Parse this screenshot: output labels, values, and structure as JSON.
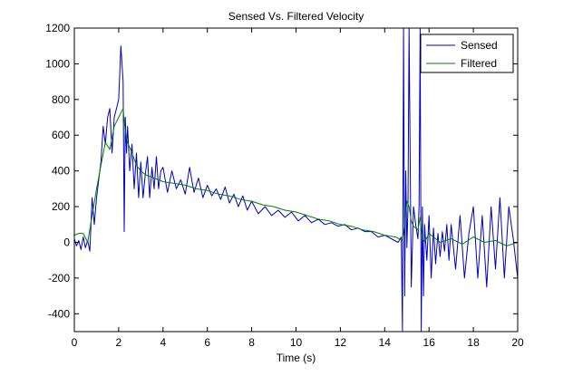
{
  "chart_data": {
    "type": "line",
    "title": "Sensed Vs. Filtered Velocity",
    "xlabel": "Time (s)",
    "ylabel": "",
    "xlim": [
      0,
      20
    ],
    "ylim": [
      -500,
      1200
    ],
    "xticks": [
      0,
      2,
      4,
      6,
      8,
      10,
      12,
      14,
      16,
      18,
      20
    ],
    "yticks": [
      -400,
      -200,
      0,
      200,
      400,
      600,
      800,
      1000,
      1200
    ],
    "xtick_labels": [
      "0",
      "2",
      "4",
      "6",
      "8",
      "10",
      "12",
      "14",
      "16",
      "18",
      "20"
    ],
    "ytick_labels": [
      "-400",
      "-200",
      "0",
      "200",
      "400",
      "600",
      "800",
      "1000",
      "1200"
    ],
    "grid": false,
    "legend_position": "top-right",
    "series": [
      {
        "name": "Sensed",
        "color": "#0000bf",
        "x": [
          0,
          0.1,
          0.2,
          0.3,
          0.4,
          0.5,
          0.6,
          0.7,
          0.8,
          0.9,
          1.0,
          1.1,
          1.2,
          1.3,
          1.4,
          1.5,
          1.6,
          1.7,
          1.8,
          1.9,
          2.0,
          2.1,
          2.2,
          2.25,
          2.3,
          2.35,
          2.4,
          2.5,
          2.6,
          2.7,
          2.8,
          2.9,
          3.0,
          3.1,
          3.2,
          3.3,
          3.4,
          3.5,
          3.6,
          3.7,
          3.8,
          3.9,
          4.0,
          4.2,
          4.4,
          4.6,
          4.8,
          5.0,
          5.2,
          5.4,
          5.6,
          5.8,
          6.0,
          6.2,
          6.4,
          6.6,
          6.8,
          7.0,
          7.2,
          7.4,
          7.6,
          7.8,
          8.0,
          8.3,
          8.6,
          8.9,
          9.2,
          9.5,
          9.8,
          10.1,
          10.4,
          10.7,
          11.0,
          11.3,
          11.6,
          11.9,
          12.2,
          12.5,
          12.8,
          13.1,
          13.4,
          13.7,
          14.0,
          14.3,
          14.6,
          14.75,
          14.8,
          14.85,
          14.9,
          14.95,
          15.0,
          15.05,
          15.1,
          15.2,
          15.3,
          15.4,
          15.5,
          15.55,
          15.6,
          15.65,
          15.7,
          15.75,
          15.8,
          15.9,
          16.0,
          16.1,
          16.2,
          16.3,
          16.4,
          16.5,
          16.6,
          16.7,
          16.8,
          16.9,
          17.0,
          17.2,
          17.4,
          17.6,
          17.8,
          18.0,
          18.2,
          18.4,
          18.6,
          18.8,
          19.0,
          19.2,
          19.4,
          19.6,
          19.8,
          20.0
        ],
        "y": [
          20,
          -20,
          10,
          -40,
          30,
          -30,
          10,
          -50,
          250,
          100,
          250,
          350,
          450,
          650,
          550,
          700,
          750,
          500,
          700,
          750,
          800,
          1100,
          900,
          60,
          700,
          500,
          650,
          400,
          550,
          300,
          500,
          250,
          450,
          250,
          380,
          480,
          250,
          420,
          300,
          480,
          300,
          400,
          420,
          280,
          400,
          300,
          350,
          270,
          420,
          280,
          360,
          250,
          320,
          260,
          300,
          240,
          310,
          220,
          270,
          200,
          260,
          180,
          230,
          160,
          200,
          150,
          180,
          140,
          170,
          120,
          150,
          110,
          130,
          100,
          110,
          90,
          100,
          70,
          80,
          60,
          60,
          30,
          40,
          20,
          0,
          30,
          -500,
          1200,
          -300,
          400,
          -30,
          200,
          1200,
          -250,
          200,
          100,
          20,
          200,
          1200,
          -500,
          200,
          -300,
          100,
          -100,
          150,
          -200,
          80,
          -120,
          50,
          -80,
          60,
          -50,
          100,
          -100,
          100,
          -150,
          150,
          -200,
          50,
          200,
          -200,
          150,
          -250,
          200,
          -150,
          250,
          -200,
          200,
          20,
          -200
        ]
      },
      {
        "name": "Filtered",
        "color": "#007f00",
        "x": [
          0,
          0.2,
          0.4,
          0.6,
          0.8,
          1.0,
          1.2,
          1.4,
          1.6,
          1.8,
          2.0,
          2.2,
          2.3,
          2.4,
          2.6,
          2.8,
          3.0,
          3.2,
          3.4,
          3.6,
          3.8,
          4.0,
          4.5,
          5.0,
          5.5,
          6.0,
          6.5,
          7.0,
          7.5,
          8.0,
          8.5,
          9.0,
          9.5,
          10.0,
          10.5,
          11.0,
          11.5,
          12.0,
          12.5,
          13.0,
          13.5,
          14.0,
          14.5,
          14.8,
          14.9,
          15.0,
          15.1,
          15.2,
          15.3,
          15.4,
          15.5,
          15.6,
          15.7,
          15.8,
          16.0,
          16.2,
          16.5,
          17.0,
          17.5,
          18.0,
          18.5,
          19.0,
          19.5,
          20.0
        ],
        "y": [
          40,
          50,
          50,
          0,
          150,
          300,
          430,
          560,
          520,
          650,
          700,
          750,
          620,
          560,
          500,
          430,
          400,
          380,
          370,
          360,
          350,
          340,
          330,
          320,
          300,
          290,
          270,
          260,
          240,
          230,
          210,
          200,
          180,
          170,
          150,
          130,
          120,
          100,
          90,
          70,
          60,
          40,
          30,
          10,
          100,
          230,
          200,
          120,
          90,
          80,
          70,
          140,
          20,
          0,
          50,
          30,
          0,
          20,
          -10,
          30,
          0,
          10,
          -20,
          0
        ]
      }
    ]
  }
}
